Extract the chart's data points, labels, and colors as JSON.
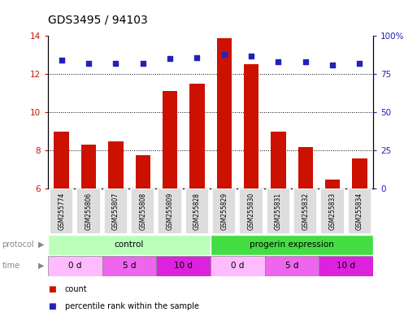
{
  "title": "GDS3495 / 94103",
  "samples": [
    "GSM255774",
    "GSM255806",
    "GSM255807",
    "GSM255808",
    "GSM255809",
    "GSM255828",
    "GSM255829",
    "GSM255830",
    "GSM255831",
    "GSM255832",
    "GSM255833",
    "GSM255834"
  ],
  "bar_values": [
    9.0,
    8.3,
    8.5,
    7.75,
    11.1,
    11.5,
    13.9,
    12.5,
    9.0,
    8.2,
    6.5,
    7.6
  ],
  "dot_values": [
    84,
    82,
    82,
    82,
    85,
    86,
    88,
    87,
    83,
    83,
    81,
    82
  ],
  "ylim_left": [
    6,
    14
  ],
  "ylim_right": [
    0,
    100
  ],
  "yticks_left": [
    6,
    8,
    10,
    12,
    14
  ],
  "yticks_right": [
    0,
    25,
    50,
    75,
    100
  ],
  "bar_color": "#cc1100",
  "dot_color": "#2222bb",
  "protocol_groups": [
    {
      "label": "control",
      "start": 0,
      "end": 6,
      "color": "#bbffbb"
    },
    {
      "label": "progerin expression",
      "start": 6,
      "end": 12,
      "color": "#44dd44"
    }
  ],
  "time_groups": [
    {
      "label": "0 d",
      "start": 0,
      "end": 2,
      "color": "#ffbbff"
    },
    {
      "label": "5 d",
      "start": 2,
      "end": 4,
      "color": "#ee66ee"
    },
    {
      "label": "10 d",
      "start": 4,
      "end": 6,
      "color": "#dd22dd"
    },
    {
      "label": "0 d",
      "start": 6,
      "end": 8,
      "color": "#ffbbff"
    },
    {
      "label": "5 d",
      "start": 8,
      "end": 10,
      "color": "#ee66ee"
    },
    {
      "label": "10 d",
      "start": 10,
      "end": 12,
      "color": "#dd22dd"
    }
  ],
  "legend_items": [
    {
      "label": "count",
      "color": "#cc1100"
    },
    {
      "label": "percentile rank within the sample",
      "color": "#2222bb"
    }
  ],
  "bg_color": "#ffffff",
  "tick_label_color_left": "#cc1100",
  "tick_label_color_right": "#2222bb",
  "sample_box_color": "#dddddd",
  "grid_color": "#000000",
  "bar_bottom": 6
}
